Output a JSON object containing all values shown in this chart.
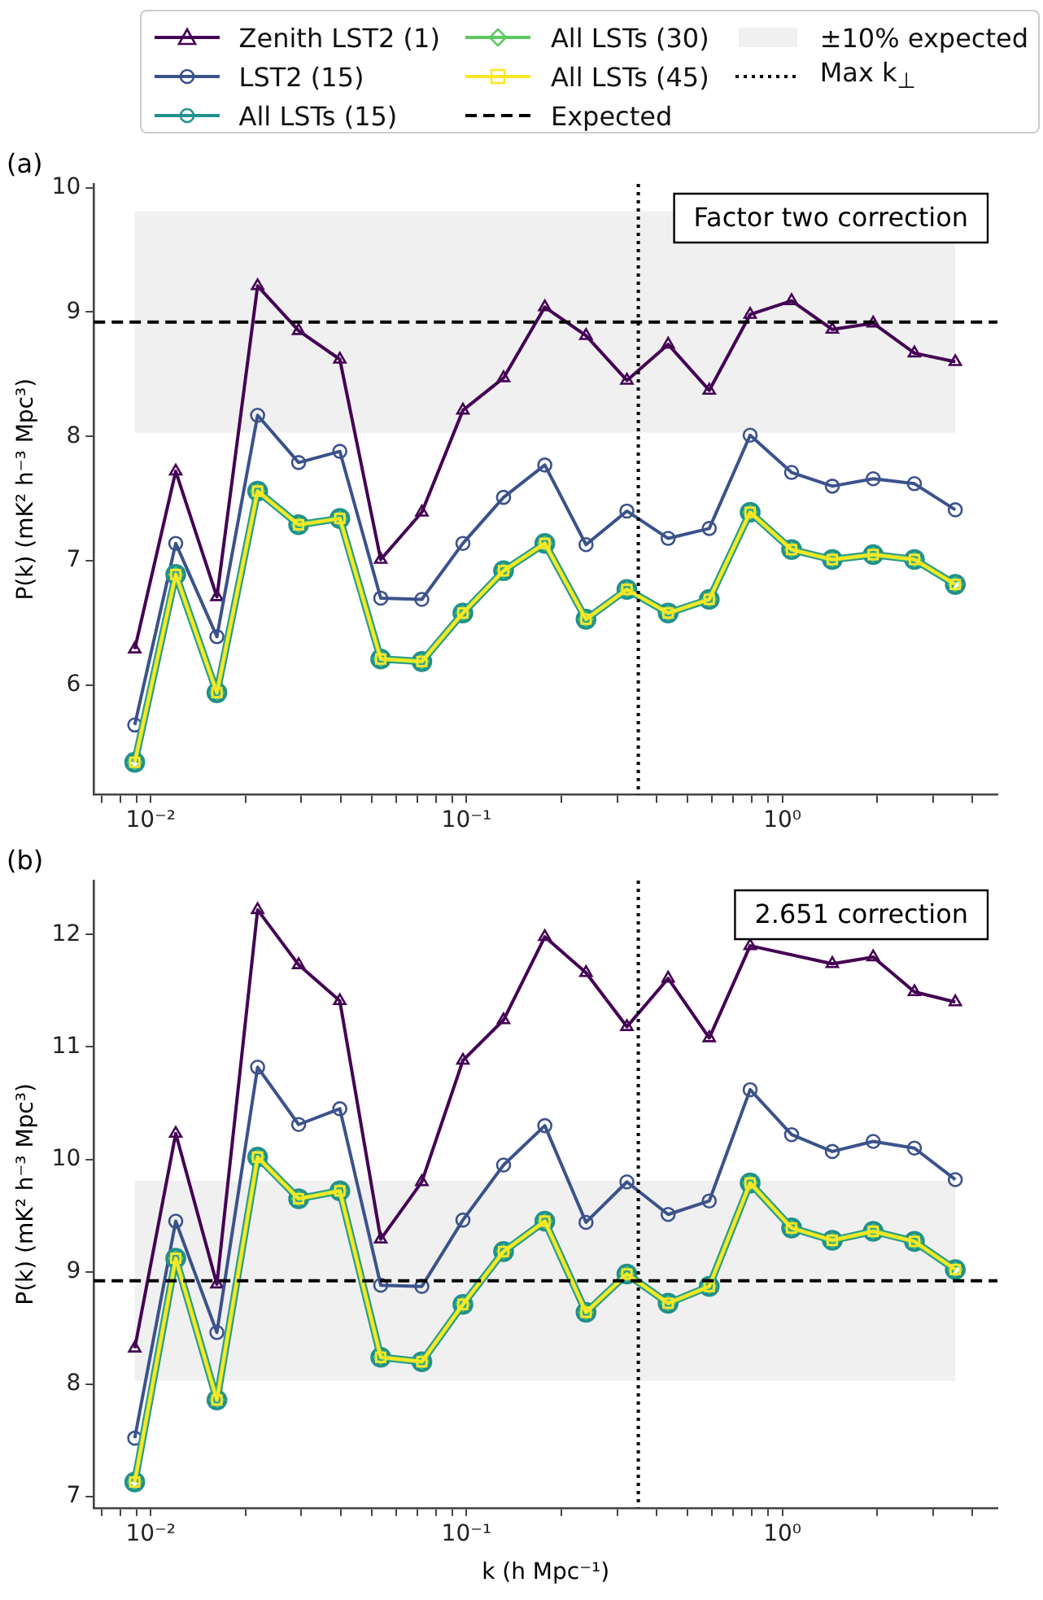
{
  "chart_data": [
    {
      "type": "line",
      "title": "(a)",
      "ylabel": "P(k) (mK² h⁻³ Mpc³)",
      "log": "x",
      "legend": "top",
      "grid": false,
      "x": [
        0.0089,
        0.012,
        0.0162,
        0.0218,
        0.0294,
        0.0397,
        0.0535,
        0.0722,
        0.0974,
        0.131,
        0.177,
        0.239,
        0.322,
        0.435,
        0.587,
        0.791,
        1.07,
        1.44,
        1.94,
        2.62,
        3.53
      ],
      "xlim": [
        0.0066,
        4.8
      ],
      "xticks": [
        {
          "value": 0.007,
          "label": null
        },
        {
          "value": 0.008,
          "label": null
        },
        {
          "value": 0.009,
          "label": null
        },
        {
          "value": 0.01,
          "label": "10⁻²"
        },
        {
          "value": 0.02,
          "label": null
        },
        {
          "value": 0.03,
          "label": null
        },
        {
          "value": 0.04,
          "label": null
        },
        {
          "value": 0.05,
          "label": null
        },
        {
          "value": 0.06,
          "label": null
        },
        {
          "value": 0.07,
          "label": null
        },
        {
          "value": 0.08,
          "label": null
        },
        {
          "value": 0.09,
          "label": null
        },
        {
          "value": 0.1,
          "label": "10⁻¹"
        },
        {
          "value": 0.2,
          "label": null
        },
        {
          "value": 0.3,
          "label": null
        },
        {
          "value": 0.4,
          "label": null
        },
        {
          "value": 0.5,
          "label": null
        },
        {
          "value": 0.6,
          "label": null
        },
        {
          "value": 0.7,
          "label": null
        },
        {
          "value": 0.8,
          "label": null
        },
        {
          "value": 0.9,
          "label": null
        },
        {
          "value": 1,
          "label": "10⁰"
        },
        {
          "value": 2,
          "label": null
        },
        {
          "value": 3,
          "label": null
        },
        {
          "value": 4,
          "label": null
        }
      ],
      "ylim": [
        5.12,
        10.03
      ],
      "yticks": [
        6,
        7,
        8,
        9,
        10
      ],
      "series": [
        {
          "name": "Zenith LST2 (1)",
          "color": "#440154",
          "marker": "triangle",
          "values": [
            6.29,
            7.72,
            6.71,
            9.21,
            8.85,
            8.62,
            7.01,
            7.39,
            8.21,
            8.47,
            9.04,
            8.81,
            8.45,
            8.74,
            8.37,
            8.98,
            9.09,
            8.86,
            8.91,
            8.67,
            8.6
          ]
        },
        {
          "name": "LST2 (15)",
          "color": "#3b528b",
          "marker": "circle",
          "values": [
            5.68,
            7.14,
            6.39,
            8.17,
            7.79,
            7.88,
            6.7,
            6.69,
            7.14,
            7.51,
            7.77,
            7.13,
            7.4,
            7.18,
            7.26,
            8.01,
            7.71,
            7.6,
            7.66,
            7.62,
            7.41
          ]
        },
        {
          "name": "All LSTs (15)",
          "color": "#21918c",
          "marker": "circle",
          "values": [
            5.38,
            6.89,
            5.94,
            7.56,
            7.29,
            7.34,
            6.21,
            6.19,
            6.58,
            6.92,
            7.14,
            6.53,
            6.77,
            6.58,
            6.69,
            7.39,
            7.09,
            7.01,
            7.05,
            7.01,
            6.81
          ]
        },
        {
          "name": "All LSTs (30)",
          "color": "#5ec962",
          "marker": "diamond",
          "values": [
            5.38,
            6.89,
            5.94,
            7.56,
            7.29,
            7.34,
            6.21,
            6.19,
            6.58,
            6.92,
            7.14,
            6.53,
            6.77,
            6.58,
            6.69,
            7.39,
            7.09,
            7.01,
            7.05,
            7.01,
            6.81
          ]
        },
        {
          "name": "All LSTs (45)",
          "color": "#fde725",
          "marker": "square",
          "values": [
            5.38,
            6.89,
            5.94,
            7.56,
            7.29,
            7.34,
            6.21,
            6.19,
            6.58,
            6.92,
            7.14,
            6.53,
            6.77,
            6.58,
            6.69,
            7.39,
            7.09,
            7.01,
            7.05,
            7.01,
            6.81
          ]
        }
      ],
      "ref_lines": [
        {
          "axis": "y",
          "value": 8.92,
          "label": "Expected",
          "line_style": "dashed",
          "color": "#000000"
        },
        {
          "axis": "x",
          "value": 0.35,
          "label": "Max k$_{⊥}$",
          "line_style": "dotted",
          "color": "#000000"
        }
      ],
      "bands": [
        {
          "axis": "y",
          "from": 8.03,
          "to": 9.81,
          "label": "±10% expected",
          "color": "#f0f0f0"
        }
      ],
      "annotations": [
        "Factor two correction"
      ]
    },
    {
      "type": "line",
      "title": "(b)",
      "xlabel": "k (h Mpc⁻¹)",
      "ylabel": "P(k) (mK² h⁻³ Mpc³)",
      "log": "x",
      "grid": false,
      "x": [
        0.0089,
        0.012,
        0.0162,
        0.0218,
        0.0294,
        0.0397,
        0.0535,
        0.0722,
        0.0974,
        0.131,
        0.177,
        0.239,
        0.322,
        0.435,
        0.587,
        0.791,
        1.07,
        1.44,
        1.94,
        2.62,
        3.53
      ],
      "xlim": [
        0.0066,
        4.8
      ],
      "xticks": [
        {
          "value": 0.007,
          "label": null
        },
        {
          "value": 0.008,
          "label": null
        },
        {
          "value": 0.009,
          "label": null
        },
        {
          "value": 0.01,
          "label": "10⁻²"
        },
        {
          "value": 0.02,
          "label": null
        },
        {
          "value": 0.03,
          "label": null
        },
        {
          "value": 0.04,
          "label": null
        },
        {
          "value": 0.05,
          "label": null
        },
        {
          "value": 0.06,
          "label": null
        },
        {
          "value": 0.07,
          "label": null
        },
        {
          "value": 0.08,
          "label": null
        },
        {
          "value": 0.09,
          "label": null
        },
        {
          "value": 0.1,
          "label": "10⁻¹"
        },
        {
          "value": 0.2,
          "label": null
        },
        {
          "value": 0.3,
          "label": null
        },
        {
          "value": 0.4,
          "label": null
        },
        {
          "value": 0.5,
          "label": null
        },
        {
          "value": 0.6,
          "label": null
        },
        {
          "value": 0.7,
          "label": null
        },
        {
          "value": 0.8,
          "label": null
        },
        {
          "value": 0.9,
          "label": null
        },
        {
          "value": 1,
          "label": "10⁰"
        },
        {
          "value": 2,
          "label": null
        },
        {
          "value": 3,
          "label": null
        },
        {
          "value": 4,
          "label": null
        }
      ],
      "ylim": [
        6.9,
        12.48
      ],
      "yticks": [
        7,
        8,
        9,
        10,
        11,
        12
      ],
      "series": [
        {
          "color": "#440154",
          "marker": "triangle",
          "values": [
            8.32,
            10.23,
            8.89,
            12.22,
            11.73,
            11.41,
            9.29,
            9.8,
            10.88,
            11.24,
            11.98,
            11.66,
            11.18,
            11.61,
            11.08,
            11.9,
            null,
            11.74,
            11.8,
            11.49,
            11.4
          ]
        },
        {
          "color": "#3b528b",
          "marker": "circle",
          "values": [
            7.52,
            9.45,
            8.46,
            10.82,
            10.31,
            10.45,
            8.88,
            8.87,
            9.46,
            9.95,
            10.3,
            9.44,
            9.8,
            9.51,
            9.63,
            10.62,
            10.22,
            10.07,
            10.16,
            10.1,
            9.82
          ]
        },
        {
          "color": "#21918c",
          "marker": "circle",
          "values": [
            7.13,
            9.12,
            7.86,
            10.02,
            9.65,
            9.72,
            8.24,
            8.2,
            8.71,
            9.18,
            9.45,
            8.64,
            8.98,
            8.72,
            8.87,
            9.79,
            9.39,
            9.28,
            9.36,
            9.27,
            9.02
          ]
        },
        {
          "color": "#5ec962",
          "marker": "diamond",
          "values": [
            7.13,
            9.12,
            7.86,
            10.02,
            9.65,
            9.72,
            8.24,
            8.2,
            8.71,
            9.18,
            9.45,
            8.64,
            8.98,
            8.72,
            8.87,
            9.79,
            9.39,
            9.28,
            9.36,
            9.27,
            9.02
          ]
        },
        {
          "color": "#fde725",
          "marker": "square",
          "values": [
            7.13,
            9.12,
            7.86,
            10.02,
            9.65,
            9.72,
            8.24,
            8.2,
            8.71,
            9.18,
            9.45,
            8.64,
            8.98,
            8.72,
            8.87,
            9.79,
            9.39,
            9.28,
            9.36,
            9.27,
            9.02
          ]
        }
      ],
      "ref_lines": [
        {
          "axis": "y",
          "value": 8.92,
          "line_style": "dashed",
          "color": "#000000"
        },
        {
          "axis": "x",
          "value": 0.35,
          "line_style": "dotted",
          "color": "#000000"
        }
      ],
      "bands": [
        {
          "axis": "y",
          "from": 8.03,
          "to": 9.81,
          "color": "#f0f0f0"
        }
      ],
      "annotations": [
        "2.651 correction"
      ]
    }
  ]
}
